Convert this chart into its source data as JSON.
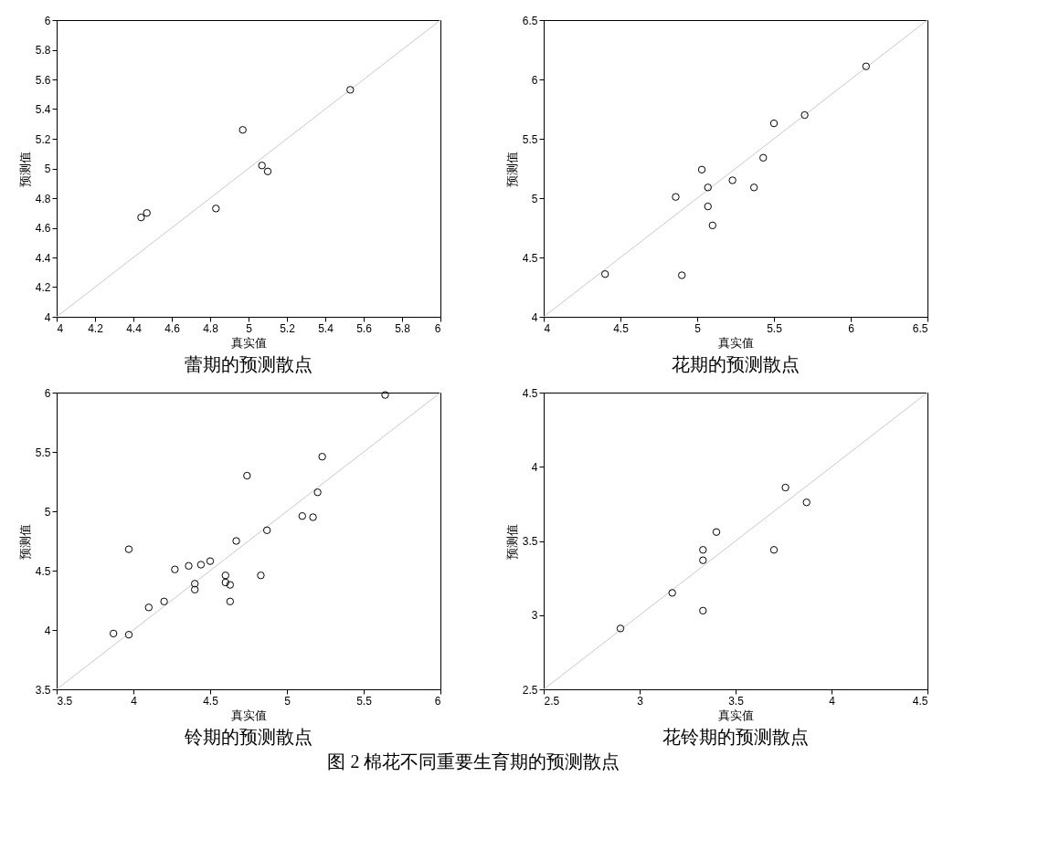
{
  "chart_data": [
    {
      "type": "scatter",
      "title": "蕾期的预测散点",
      "xlabel": "真实值",
      "ylabel": "预测值",
      "xlim": [
        4,
        6
      ],
      "ylim": [
        4,
        6
      ],
      "xticks": [
        4,
        4.2,
        4.4,
        4.6,
        4.8,
        5,
        5.2,
        5.4,
        5.6,
        5.8,
        6
      ],
      "yticks": [
        4,
        4.2,
        4.4,
        4.6,
        4.8,
        5,
        5.2,
        5.4,
        5.6,
        5.8,
        6
      ],
      "grid": false,
      "series": [
        {
          "type": "line",
          "color": "#c8c8c8",
          "x": [
            4,
            6
          ],
          "values": [
            4,
            6
          ]
        },
        {
          "marker": "circle",
          "color": "#000000",
          "x": [
            4.44,
            4.47,
            4.83,
            4.97,
            5.07,
            5.1,
            5.53
          ],
          "values": [
            4.67,
            4.7,
            4.73,
            5.26,
            5.02,
            4.98,
            5.53
          ]
        }
      ]
    },
    {
      "type": "scatter",
      "title": "花期的预测散点",
      "xlabel": "真实值",
      "ylabel": "预测值",
      "xlim": [
        4,
        6.5
      ],
      "ylim": [
        4,
        6.5
      ],
      "xticks": [
        4,
        4.5,
        5,
        5.5,
        6,
        6.5
      ],
      "yticks": [
        4,
        4.5,
        5,
        5.5,
        6,
        6.5
      ],
      "grid": false,
      "series": [
        {
          "type": "line",
          "color": "#c8c8c8",
          "x": [
            4,
            6.5
          ],
          "values": [
            4,
            6.5
          ]
        },
        {
          "marker": "circle",
          "color": "#000000",
          "x": [
            4.4,
            4.9,
            4.86,
            5.03,
            5.07,
            5.07,
            5.1,
            5.23,
            5.37,
            5.43,
            5.5,
            5.7,
            6.1
          ],
          "values": [
            4.36,
            4.35,
            5.01,
            5.24,
            5.09,
            4.93,
            4.77,
            5.15,
            5.09,
            5.34,
            5.63,
            5.7,
            6.11
          ]
        }
      ]
    },
    {
      "type": "scatter",
      "title": "铃期的预测散点",
      "xlabel": "真实值",
      "ylabel": "预测值",
      "xlim": [
        3.5,
        6
      ],
      "ylim": [
        3.5,
        6
      ],
      "xticks": [
        3.5,
        4,
        4.5,
        5,
        5.5,
        6
      ],
      "yticks": [
        3.5,
        4,
        4.5,
        5,
        5.5,
        6
      ],
      "grid": false,
      "series": [
        {
          "type": "line",
          "color": "#c8c8c8",
          "x": [
            3.5,
            6
          ],
          "values": [
            3.5,
            6
          ]
        },
        {
          "marker": "circle",
          "color": "#000000",
          "x": [
            3.87,
            3.97,
            3.97,
            4.1,
            4.2,
            4.27,
            4.36,
            4.44,
            4.5,
            4.4,
            4.4,
            4.6,
            4.6,
            4.63,
            4.63,
            4.67,
            4.74,
            4.83,
            4.87,
            5.1,
            5.17,
            5.2,
            5.23,
            5.64
          ],
          "values": [
            3.97,
            3.96,
            4.68,
            4.19,
            4.24,
            4.51,
            4.54,
            4.55,
            4.58,
            4.39,
            4.34,
            4.46,
            4.4,
            4.38,
            4.24,
            4.75,
            5.3,
            4.46,
            4.84,
            4.96,
            4.95,
            5.16,
            5.46,
            5.98
          ]
        }
      ]
    },
    {
      "type": "scatter",
      "title": "花铃期的预测散点",
      "xlabel": "真实值",
      "ylabel": "预测值",
      "xlim": [
        2.5,
        4.5
      ],
      "ylim": [
        2.5,
        4.5
      ],
      "xticks": [
        2.5,
        3,
        3.5,
        4,
        4.5
      ],
      "yticks": [
        2.5,
        3,
        3.5,
        4,
        4.5
      ],
      "grid": false,
      "annotations": [
        "图 2  棉花不同重要生育期的预测散点"
      ],
      "series": [
        {
          "type": "line",
          "color": "#c8c8c8",
          "x": [
            2.5,
            4.5
          ],
          "values": [
            2.5,
            4.5
          ]
        },
        {
          "marker": "circle",
          "color": "#000000",
          "x": [
            2.9,
            3.17,
            3.33,
            3.33,
            3.33,
            3.4,
            3.7,
            3.76,
            3.87
          ],
          "values": [
            2.91,
            3.15,
            3.44,
            3.37,
            3.03,
            3.56,
            3.44,
            3.86,
            3.76
          ]
        }
      ]
    }
  ]
}
